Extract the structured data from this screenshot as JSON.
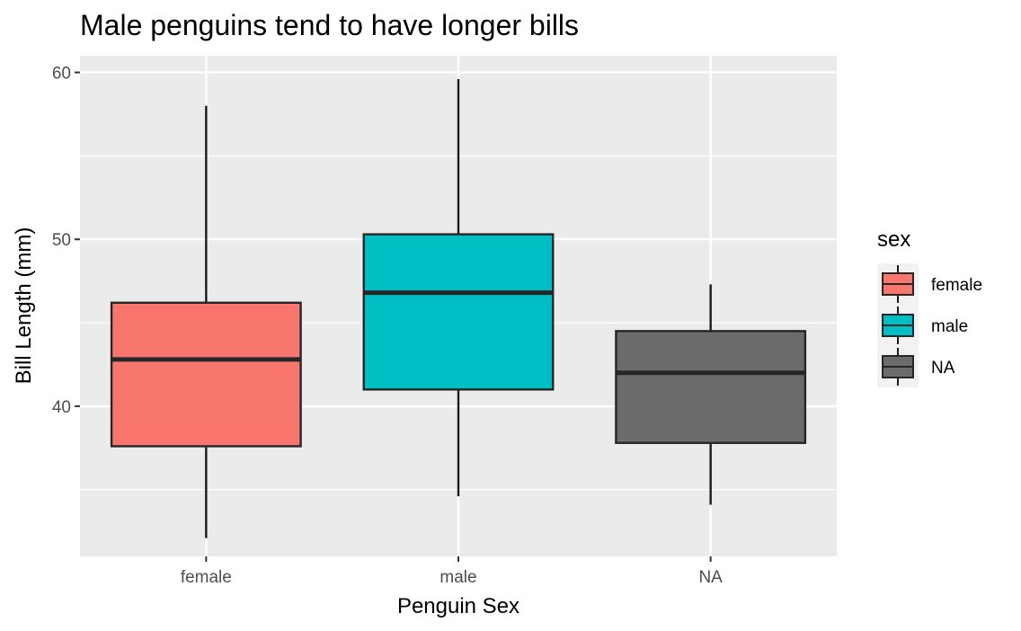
{
  "chart_data": {
    "type": "boxplot",
    "title": "Male penguins tend to have longer bills",
    "xlabel": "Penguin Sex",
    "ylabel": "Bill Length (mm)",
    "ylim": [
      31,
      61
    ],
    "yticks": [
      40,
      50,
      60
    ],
    "grid": true,
    "legend": {
      "title": "sex",
      "position": "right",
      "entries": [
        "female",
        "male",
        "NA"
      ]
    },
    "categories": [
      "female",
      "male",
      "NA"
    ],
    "boxes": [
      {
        "category": "female",
        "min": 32.1,
        "q1": 37.6,
        "median": 42.8,
        "q3": 46.2,
        "max": 58.0,
        "color": "#F8766D"
      },
      {
        "category": "male",
        "min": 34.6,
        "q1": 41.0,
        "median": 46.8,
        "q3": 50.3,
        "max": 59.6,
        "color": "#00BFC4"
      },
      {
        "category": "NA",
        "min": 34.1,
        "q1": 37.8,
        "median": 42.0,
        "q3": 44.5,
        "max": 47.3,
        "color": "#6B6B6B"
      }
    ]
  }
}
